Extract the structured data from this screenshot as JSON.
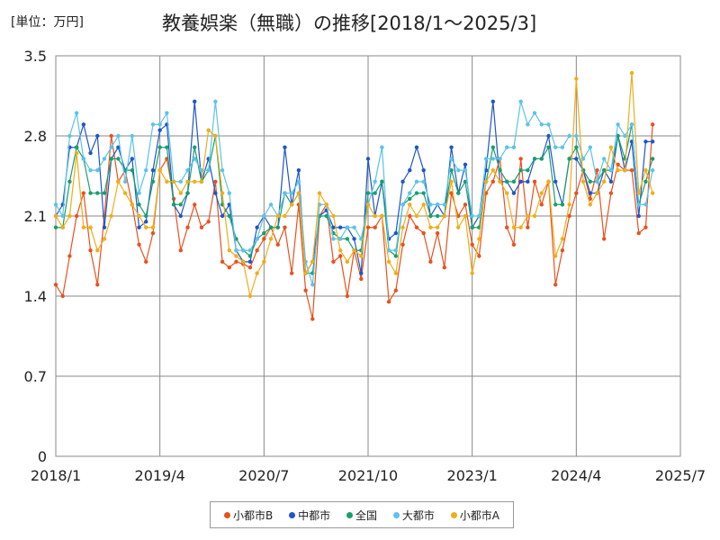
{
  "chart_data": {
    "type": "line",
    "title": "教養娯楽（無職）の推移[2018/1～2025/3]",
    "unit_label": "[単位：万円]",
    "xlabel": "",
    "ylabel": "",
    "ylim": [
      0,
      3.5
    ],
    "y_ticks": [
      "0",
      "0.7",
      "1.4",
      "2.1",
      "2.8",
      "3.5"
    ],
    "x_tick_labels": [
      "2018/1",
      "2019/4",
      "2020/7",
      "2021/10",
      "2023/1",
      "2024/4",
      "2025/7"
    ],
    "x_start": "2018/1",
    "grid": true,
    "legend_position": "bottom",
    "series": [
      {
        "name": "小都市B",
        "color": "#e8521e",
        "values": [
          1.5,
          1.4,
          1.75,
          2.1,
          2.3,
          1.8,
          1.5,
          2.1,
          2.8,
          2.4,
          2.5,
          2.2,
          1.85,
          1.7,
          1.95,
          2.5,
          2.6,
          2.25,
          1.8,
          2.0,
          2.2,
          2.0,
          2.05,
          2.4,
          1.7,
          1.65,
          1.7,
          1.68,
          1.65,
          1.8,
          1.9,
          2.0,
          1.85,
          2.0,
          1.6,
          2.2,
          1.45,
          1.2,
          2.1,
          2.2,
          1.7,
          1.75,
          1.4,
          1.8,
          1.55,
          2.0,
          2.0,
          2.1,
          1.35,
          1.45,
          1.85,
          2.1,
          2.0,
          1.95,
          1.7,
          1.95,
          1.65,
          2.3,
          2.1,
          2.2,
          1.85,
          1.75,
          2.3,
          2.4,
          2.6,
          2.0,
          1.85,
          2.6,
          2.0,
          2.4,
          2.2,
          2.4,
          1.5,
          1.8,
          2.1,
          2.3,
          2.5,
          2.25,
          2.5,
          1.9,
          2.3,
          2.55,
          2.5,
          2.5,
          1.95,
          2.0,
          2.9
        ]
      },
      {
        "name": "中都市",
        "color": "#1f55c8",
        "values": [
          2.1,
          2.2,
          2.7,
          2.7,
          2.9,
          2.65,
          2.8,
          2.0,
          2.6,
          2.7,
          2.5,
          2.6,
          2.0,
          2.05,
          2.5,
          2.85,
          2.9,
          2.2,
          2.1,
          2.3,
          3.1,
          2.4,
          2.6,
          2.3,
          2.1,
          2.2,
          1.8,
          1.7,
          1.7,
          2.0,
          2.1,
          2.0,
          2.0,
          2.7,
          2.2,
          2.5,
          1.6,
          1.7,
          2.1,
          2.15,
          2.0,
          2.0,
          2.0,
          1.9,
          1.6,
          2.6,
          2.1,
          2.4,
          1.9,
          1.95,
          2.4,
          2.5,
          2.7,
          2.5,
          2.1,
          2.2,
          2.1,
          2.7,
          2.3,
          2.55,
          2.0,
          2.1,
          2.5,
          3.1,
          2.4,
          2.4,
          2.3,
          2.4,
          2.4,
          2.6,
          2.6,
          2.8,
          2.4,
          2.2,
          2.6,
          2.6,
          2.5,
          2.3,
          2.3,
          2.5,
          2.4,
          2.8,
          2.5,
          2.75,
          2.1,
          2.75,
          2.75
        ]
      },
      {
        "name": "全国",
        "color": "#1a9e6e",
        "values": [
          2.0,
          2.0,
          2.4,
          2.7,
          2.6,
          2.3,
          2.3,
          2.3,
          2.6,
          2.6,
          2.5,
          2.5,
          2.2,
          2.1,
          2.4,
          2.7,
          2.7,
          2.2,
          2.2,
          2.3,
          2.7,
          2.4,
          2.5,
          2.8,
          2.2,
          2.1,
          1.9,
          1.8,
          1.75,
          1.9,
          1.95,
          2.0,
          2.0,
          2.3,
          2.2,
          2.3,
          1.6,
          1.6,
          2.1,
          2.1,
          1.95,
          1.9,
          1.9,
          1.8,
          1.8,
          2.3,
          2.3,
          2.4,
          1.8,
          1.75,
          2.2,
          2.25,
          2.3,
          2.3,
          2.1,
          2.1,
          2.1,
          2.5,
          2.3,
          2.4,
          2.0,
          2.0,
          2.4,
          2.7,
          2.5,
          2.4,
          2.4,
          2.5,
          2.5,
          2.6,
          2.6,
          2.7,
          2.2,
          2.2,
          2.6,
          2.7,
          2.5,
          2.4,
          2.4,
          2.5,
          2.5,
          2.8,
          2.6,
          2.9,
          2.2,
          2.4,
          2.6
        ]
      },
      {
        "name": "大都市",
        "color": "#5cc3ea",
        "values": [
          2.2,
          2.1,
          2.8,
          3.0,
          2.6,
          2.5,
          2.5,
          2.6,
          2.7,
          2.8,
          2.4,
          2.8,
          2.3,
          2.5,
          2.9,
          2.9,
          3.0,
          2.4,
          2.4,
          2.5,
          2.6,
          2.5,
          2.5,
          3.1,
          2.5,
          2.3,
          1.8,
          1.8,
          1.8,
          1.9,
          2.1,
          2.2,
          2.1,
          2.3,
          2.3,
          2.4,
          1.7,
          1.5,
          2.2,
          2.2,
          1.9,
          1.9,
          2.0,
          2.0,
          1.9,
          2.2,
          2.4,
          2.7,
          1.8,
          1.8,
          2.2,
          2.3,
          2.4,
          2.4,
          2.2,
          2.2,
          2.2,
          2.6,
          2.5,
          2.5,
          2.1,
          2.1,
          2.6,
          2.6,
          2.6,
          2.7,
          2.7,
          3.1,
          2.9,
          3.0,
          2.9,
          2.9,
          2.7,
          2.7,
          2.8,
          2.8,
          2.6,
          2.7,
          2.4,
          2.6,
          2.5,
          2.9,
          2.8,
          2.9,
          2.2,
          2.2,
          2.5
        ]
      },
      {
        "name": "小都市A",
        "color": "#f0ad1a",
        "values": [
          2.1,
          2.0,
          2.1,
          2.65,
          2.0,
          2.0,
          1.8,
          1.9,
          2.1,
          2.4,
          2.3,
          2.2,
          2.1,
          2.0,
          2.0,
          2.5,
          2.4,
          2.4,
          2.3,
          2.4,
          2.4,
          2.4,
          2.85,
          2.8,
          2.3,
          1.8,
          1.75,
          1.7,
          1.4,
          1.6,
          1.7,
          1.9,
          2.1,
          2.1,
          2.2,
          2.3,
          1.6,
          1.7,
          2.3,
          2.2,
          2.1,
          1.8,
          1.7,
          1.8,
          1.75,
          2.2,
          2.1,
          2.1,
          1.7,
          1.6,
          2.0,
          2.2,
          2.1,
          2.2,
          2.0,
          2.0,
          2.1,
          2.4,
          2.0,
          2.1,
          1.6,
          1.9,
          2.4,
          2.5,
          2.4,
          2.3,
          2.0,
          2.0,
          2.1,
          2.1,
          2.3,
          2.4,
          1.75,
          1.9,
          2.2,
          3.3,
          2.4,
          2.2,
          2.3,
          2.4,
          2.7,
          2.5,
          2.5,
          3.35,
          2.3,
          2.5,
          2.3
        ]
      }
    ]
  }
}
